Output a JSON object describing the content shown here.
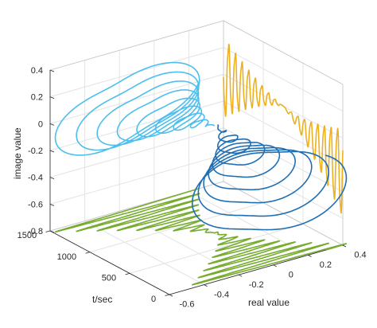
{
  "chart_data": {
    "type": "line3d",
    "title": "",
    "xlabel": "real value",
    "ylabel": "t/sec",
    "zlabel": "image value",
    "xlim": [
      -0.6,
      0.4
    ],
    "ylim": [
      0,
      1500
    ],
    "zlim": [
      -0.8,
      0.4
    ],
    "xticks": [
      "-0.6",
      "-0.4",
      "-0.2",
      "0",
      "0.2",
      "0.4"
    ],
    "yticks": [
      "0",
      "500",
      "1000",
      "1500"
    ],
    "zticks": [
      "-0.8",
      "-0.6",
      "-0.4",
      "-0.2",
      "0",
      "0.2",
      "0.4"
    ],
    "grid": true,
    "series": [
      {
        "kind": "spiral-3d",
        "color": "#1f6fb5",
        "t_range": [
          0,
          750
        ],
        "re_range": [
          -0.45,
          0.4
        ],
        "im_range": [
          -0.72,
          0.05
        ],
        "converges_to": [
          0,
          0
        ]
      },
      {
        "kind": "spiral-3d",
        "color": "#4dbeee",
        "t_range": [
          750,
          1500
        ],
        "re_range": [
          -0.55,
          0.2
        ],
        "im_range": [
          -0.55,
          0.33
        ],
        "converges_to": [
          0,
          0
        ]
      },
      {
        "kind": "projection-on-real-time-plane",
        "color": "#77ac30",
        "im_value": -0.8
      },
      {
        "kind": "projection-on-image-time-plane",
        "color": "#edb120",
        "real_value": 0.4
      }
    ]
  }
}
